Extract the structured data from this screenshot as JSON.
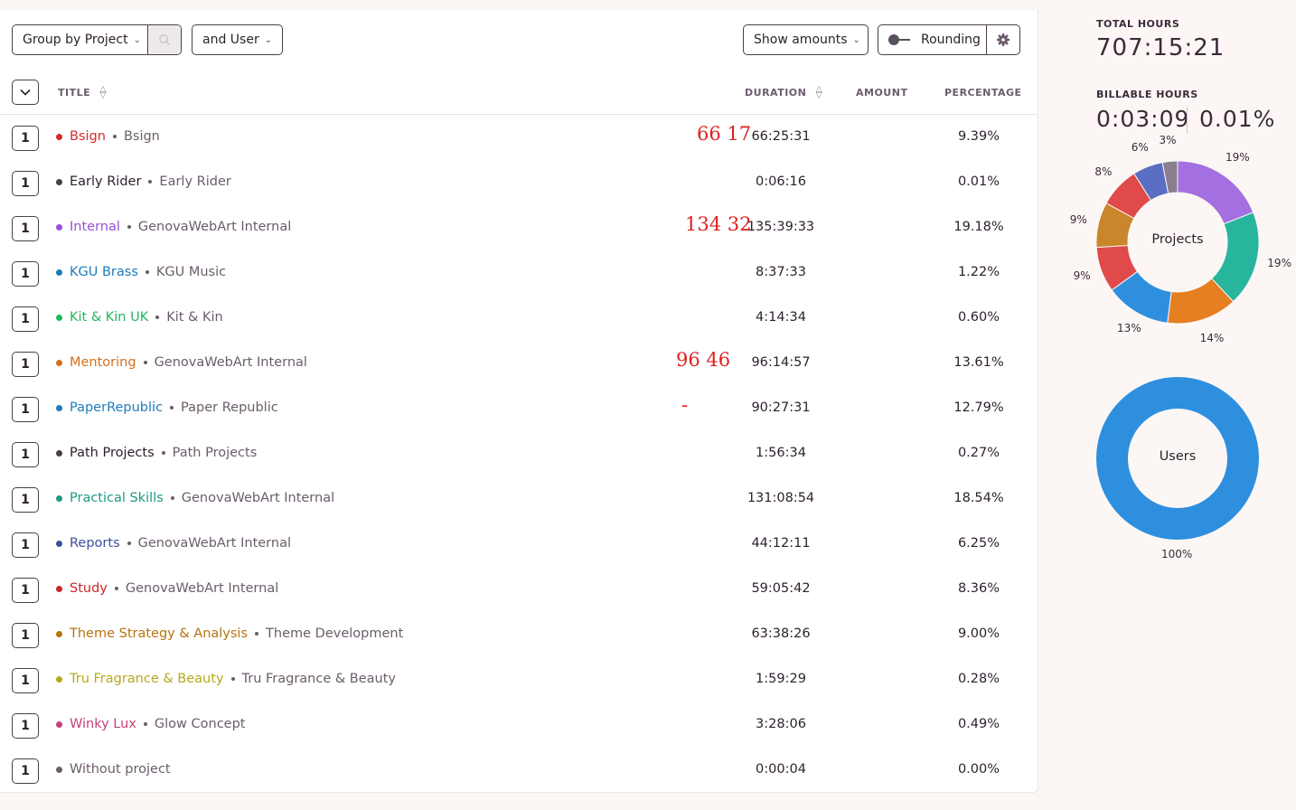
{
  "toolbar": {
    "group_by_label": "Group by Project",
    "and_user_label": "and User",
    "show_amounts_label": "Show amounts",
    "rounding_label": "Rounding"
  },
  "table": {
    "headers": {
      "title": "TITLE",
      "duration": "DURATION",
      "amount": "AMOUNT",
      "percentage": "PERCENTAGE"
    },
    "rows": [
      {
        "count": "1",
        "project": "Bsign",
        "client": "Bsign",
        "duration": "66:25:31",
        "percentage": "9.39%",
        "color": "#d92b2b",
        "annotation": "66 17"
      },
      {
        "count": "1",
        "project": "Early Rider",
        "client": "Early Rider",
        "duration": "0:06:16",
        "percentage": "0.01%",
        "color": "#4a3e4a",
        "annotation": ""
      },
      {
        "count": "1",
        "project": "Internal",
        "client": "GenovaWebArt Internal",
        "duration": "135:39:33",
        "percentage": "19.18%",
        "color": "#9b4fd4",
        "annotation": "134 32"
      },
      {
        "count": "1",
        "project": "KGU Brass",
        "client": "KGU Music",
        "duration": "8:37:33",
        "percentage": "1.22%",
        "color": "#1e7bbd",
        "annotation": ""
      },
      {
        "count": "1",
        "project": "Kit & Kin UK",
        "client": "Kit & Kin",
        "duration": "4:14:34",
        "percentage": "0.60%",
        "color": "#1fb85a",
        "annotation": ""
      },
      {
        "count": "1",
        "project": "Mentoring",
        "client": "GenovaWebArt Internal",
        "duration": "96:14:57",
        "percentage": "13.61%",
        "color": "#d0701e",
        "annotation": "96 46"
      },
      {
        "count": "1",
        "project": "PaperRepublic",
        "client": "Paper Republic",
        "duration": "90:27:31",
        "percentage": "12.79%",
        "color": "#1e7bbd",
        "annotation": "-"
      },
      {
        "count": "1",
        "project": "Path Projects",
        "client": "Path Projects",
        "duration": "1:56:34",
        "percentage": "0.27%",
        "color": "#4a3e4a",
        "annotation": ""
      },
      {
        "count": "1",
        "project": "Practical Skills",
        "client": "GenovaWebArt Internal",
        "duration": "131:08:54",
        "percentage": "18.54%",
        "color": "#1e9a84",
        "annotation": ""
      },
      {
        "count": "1",
        "project": "Reports",
        "client": "GenovaWebArt Internal",
        "duration": "44:12:11",
        "percentage": "6.25%",
        "color": "#3d4e9c",
        "annotation": ""
      },
      {
        "count": "1",
        "project": "Study",
        "client": "GenovaWebArt Internal",
        "duration": "59:05:42",
        "percentage": "8.36%",
        "color": "#c92626",
        "annotation": ""
      },
      {
        "count": "1",
        "project": "Theme Strategy & Analysis",
        "client": "Theme Development",
        "duration": "63:38:26",
        "percentage": "9.00%",
        "color": "#b8730f",
        "annotation": ""
      },
      {
        "count": "1",
        "project": "Tru Fragrance & Beauty",
        "client": "Tru Fragrance & Beauty",
        "duration": "1:59:29",
        "percentage": "0.28%",
        "color": "#b9a81a",
        "annotation": ""
      },
      {
        "count": "1",
        "project": "Winky Lux",
        "client": "Glow Concept",
        "duration": "3:28:06",
        "percentage": "0.49%",
        "color": "#c2417a",
        "annotation": ""
      },
      {
        "count": "1",
        "project": "Without project",
        "client": "",
        "duration": "0:00:04",
        "percentage": "0.00%",
        "color": "#6b5c6b",
        "annotation": ""
      }
    ]
  },
  "summary": {
    "total_label": "TOTAL HOURS",
    "total_value": "707:15:21",
    "billable_label": "BILLABLE HOURS",
    "billable_value": "0:03:09",
    "billable_pct": "0.01%"
  },
  "charts": {
    "projects": {
      "center_label": "Projects",
      "segments": [
        {
          "label": "19%",
          "value": 19,
          "color": "#a46fe0"
        },
        {
          "label": "19%",
          "value": 19,
          "color": "#27b59d"
        },
        {
          "label": "14%",
          "value": 14,
          "color": "#e67e22"
        },
        {
          "label": "13%",
          "value": 13,
          "color": "#2f8fdf"
        },
        {
          "label": "9%",
          "value": 9,
          "color": "#e04a4a"
        },
        {
          "label": "9%",
          "value": 9,
          "color": "#c9862a"
        },
        {
          "label": "8%",
          "value": 8,
          "color": "#e04a4a"
        },
        {
          "label": "6%",
          "value": 6,
          "color": "#5a6fc4"
        },
        {
          "label": "3%",
          "value": 3,
          "color": "#8a7f8f"
        }
      ]
    },
    "users": {
      "center_label": "Users",
      "segments": [
        {
          "label": "100%",
          "value": 100,
          "color": "#2f8fdf"
        }
      ]
    }
  }
}
